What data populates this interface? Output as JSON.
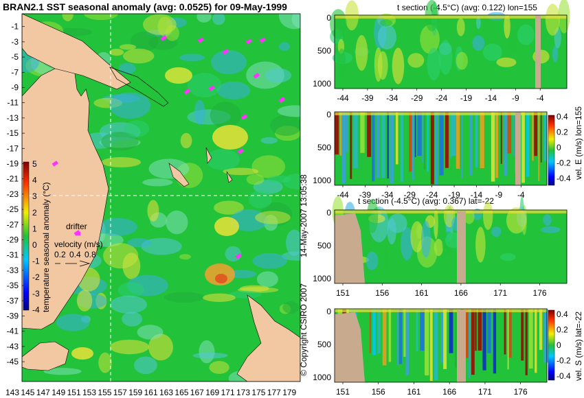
{
  "map": {
    "title": "BRAN2.1 SST seasonal anomaly (avg: 0.0525) for 09-May-1999",
    "lat_ticks": [
      "-1",
      "-3",
      "-5",
      "-7",
      "-9",
      "-11",
      "-13",
      "-15",
      "-17",
      "-19",
      "-21",
      "-23",
      "-25",
      "-27",
      "-29",
      "-31",
      "-33",
      "-35",
      "-37",
      "-39",
      "-41",
      "-43",
      "-45"
    ],
    "lon_ticks": [
      "143",
      "145",
      "147",
      "149",
      "151",
      "153",
      "155",
      "157",
      "159",
      "161",
      "163",
      "165",
      "167",
      "169",
      "171",
      "173",
      "175",
      "177",
      "179"
    ],
    "colorbar": {
      "label": "temperature seasonal anomaly (°C)",
      "ticks": [
        "5",
        "4",
        "3",
        "2",
        "1",
        "0",
        "-1",
        "-2",
        "-3",
        "-4"
      ]
    },
    "drifter_label": "drifter",
    "velocity_label": "velocity (m/s)",
    "velocity_scale": [
      "0.2",
      "0.4",
      "0.8"
    ],
    "colors": {
      "land": "#f2c8a2",
      "ocean_base": "#22c23a",
      "cool": "#33aadd",
      "warm": "#e8e23a",
      "drifter": "#ff33ff"
    }
  },
  "panels": {
    "p1": {
      "title": "t section (-4.5°C) (avg: 0.122) lon=155",
      "x_ticks": [
        "-44",
        "-39",
        "-34",
        "-29",
        "-24",
        "-19",
        "-14",
        "-9",
        "-4"
      ],
      "y_ticks": [
        "0",
        "500",
        "1000"
      ]
    },
    "p2": {
      "colorbar_label": "vel. E (m/s) lon=155",
      "colorbar_ticks": [
        "0.4",
        "0.2",
        "0",
        "-0.2",
        "-0.4"
      ],
      "x_ticks": [
        "-44",
        "-39",
        "-34",
        "-29",
        "-24",
        "-19",
        "-14",
        "-9",
        "-4"
      ],
      "y_ticks": [
        "0",
        "500",
        "1000"
      ]
    },
    "p3": {
      "title": "t section (-4.5°C) (avg: 0.367) lat=-22",
      "x_ticks": [
        "151",
        "156",
        "161",
        "166",
        "171",
        "176"
      ],
      "y_ticks": [
        "0",
        "500",
        "1000"
      ]
    },
    "p4": {
      "colorbar_label": "vel. S (m/s) lat=-22",
      "colorbar_ticks": [
        "0.4",
        "0.2",
        "0",
        "-0.2",
        "-0.4"
      ],
      "x_ticks": [
        "151",
        "156",
        "161",
        "166",
        "171",
        "176"
      ],
      "y_ticks": [
        "0",
        "500",
        "1000"
      ]
    },
    "land_color": "#c8ab8e"
  },
  "timestamp": "14-May-2007 13:05:38",
  "copyright": "© Copyright CSIRO 2007"
}
